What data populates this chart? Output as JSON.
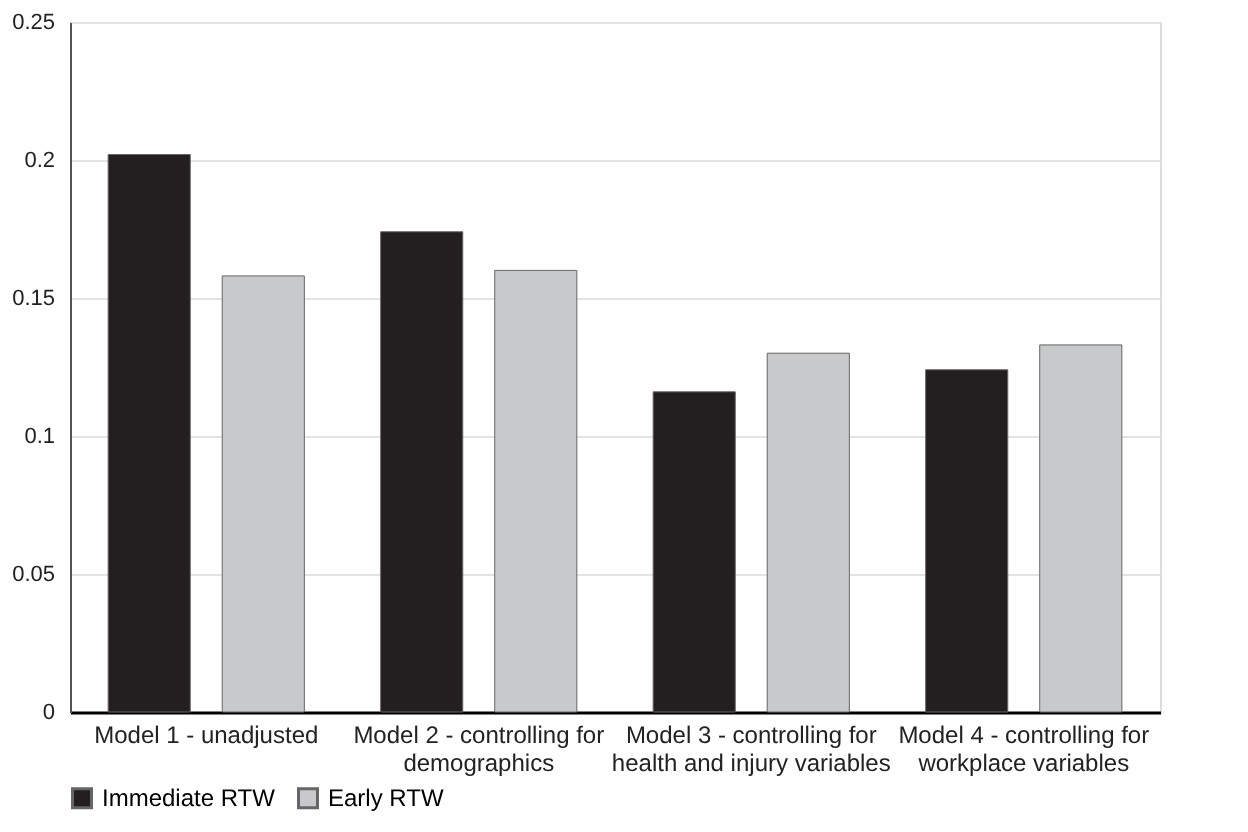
{
  "chart_data": {
    "type": "bar",
    "categories": [
      "Model 1 - unadjusted",
      "Model 2 - controlling for demographics",
      "Model 3 - controlling for health and injury variables",
      "Model 4 - controlling for workplace variables"
    ],
    "series": [
      {
        "name": "Immediate RTW",
        "color": "#231f20",
        "values": [
          0.202,
          0.174,
          0.116,
          0.124
        ]
      },
      {
        "name": "Early RTW",
        "color": "#c8c9cb",
        "values": [
          0.158,
          0.16,
          0.13,
          0.133
        ]
      }
    ],
    "ylim": [
      0,
      0.25
    ],
    "yticks": [
      0,
      0.05,
      0.1,
      0.15,
      0.2,
      0.25
    ],
    "grid": "y",
    "legend": "bottom"
  }
}
